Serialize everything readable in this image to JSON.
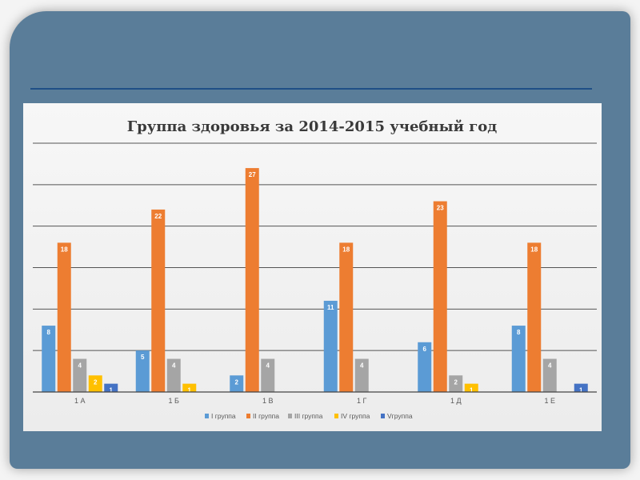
{
  "chart_data": {
    "type": "bar",
    "title": "Группа здоровья за 2014-2015 учебный год",
    "categories": [
      "1 А",
      "1 Б",
      "1 В",
      "1 Г",
      "1 Д",
      "1 Е"
    ],
    "series": [
      {
        "name": "I группа",
        "color": "#5b9bd5",
        "values": [
          8,
          5,
          2,
          11,
          6,
          8
        ]
      },
      {
        "name": "II группа",
        "color": "#ed7d31",
        "values": [
          18,
          22,
          27,
          18,
          23,
          18
        ]
      },
      {
        "name": "III группа",
        "color": "#a5a5a5",
        "values": [
          4,
          4,
          4,
          4,
          2,
          4
        ]
      },
      {
        "name": "IV группа",
        "color": "#ffc000",
        "values": [
          2,
          1,
          null,
          null,
          1,
          null
        ]
      },
      {
        "name": "Vгруппа",
        "color": "#4472c4",
        "values": [
          1,
          null,
          null,
          null,
          null,
          1
        ]
      }
    ],
    "ylim": [
      0,
      30
    ],
    "grid": true,
    "legend": "bottom"
  },
  "colors": {
    "background": "#5a7d99",
    "divider": "#1f4f86",
    "gridline": "#555555"
  }
}
